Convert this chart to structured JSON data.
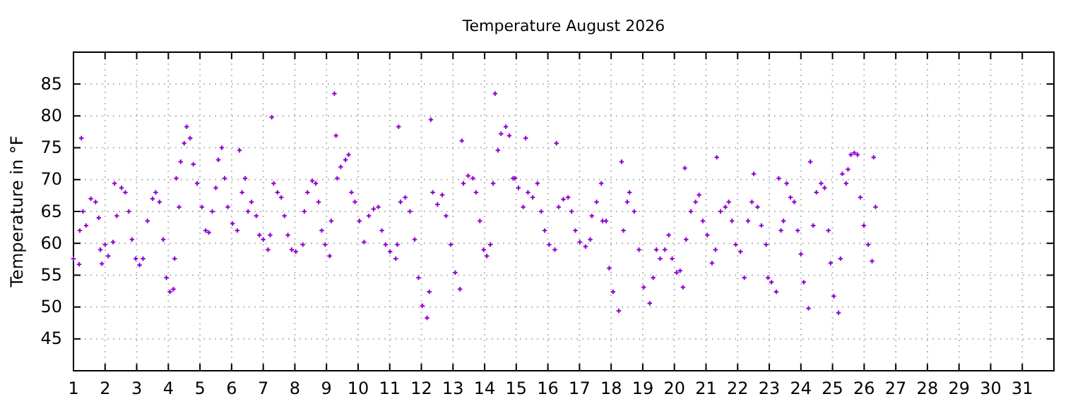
{
  "chart_data": {
    "type": "scatter",
    "title": "Temperature August 2026",
    "ylabel": "Temperature in °F",
    "marker": "cross",
    "grid": true,
    "xlim": [
      1,
      32
    ],
    "xticks": [
      1,
      2,
      3,
      4,
      5,
      6,
      7,
      8,
      9,
      10,
      11,
      12,
      13,
      14,
      15,
      16,
      17,
      18,
      19,
      20,
      21,
      22,
      23,
      24,
      25,
      26,
      27,
      28,
      29,
      30,
      31
    ],
    "ylim": [
      40,
      90
    ],
    "yticks": [
      {
        "value": 40,
        "label": null
      },
      45,
      50,
      55,
      60,
      65,
      70,
      75,
      80,
      85,
      {
        "value": 90,
        "label": null
      }
    ],
    "series": [
      {
        "color": "#9400d3",
        "x": [
          1.0,
          1.18,
          1.2,
          1.25,
          1.3,
          1.4,
          1.55,
          1.7,
          1.8,
          1.85,
          1.9,
          2.0,
          2.1,
          2.25,
          2.3,
          2.37,
          2.52,
          2.64,
          2.75,
          2.85,
          2.97,
          3.09,
          3.2,
          3.34,
          3.5,
          3.6,
          3.72,
          3.84,
          3.94,
          4.05,
          4.16,
          4.2,
          4.25,
          4.34,
          4.39,
          4.5,
          4.58,
          4.69,
          4.79,
          4.91,
          5.06,
          5.18,
          5.28,
          5.39,
          5.5,
          5.58,
          5.69,
          5.78,
          5.88,
          6.03,
          6.18,
          6.25,
          6.33,
          6.43,
          6.52,
          6.63,
          6.78,
          6.88,
          7.0,
          7.15,
          7.22,
          7.27,
          7.33,
          7.45,
          7.57,
          7.67,
          7.78,
          7.9,
          8.03,
          8.25,
          8.3,
          8.4,
          8.55,
          8.66,
          8.75,
          8.85,
          8.96,
          9.1,
          9.15,
          9.25,
          9.3,
          9.34,
          9.45,
          9.6,
          9.7,
          9.79,
          9.9,
          10.04,
          10.19,
          10.34,
          10.49,
          10.64,
          10.75,
          10.87,
          11.01,
          11.19,
          11.24,
          11.28,
          11.34,
          11.49,
          11.64,
          11.79,
          11.91,
          12.03,
          12.18,
          12.25,
          12.3,
          12.36,
          12.51,
          12.66,
          12.78,
          12.93,
          13.07,
          13.22,
          13.28,
          13.33,
          13.48,
          13.63,
          13.73,
          13.85,
          13.97,
          14.07,
          14.18,
          14.27,
          14.33,
          14.42,
          14.52,
          14.67,
          14.78,
          14.9,
          14.96,
          15.07,
          15.22,
          15.3,
          15.37,
          15.52,
          15.67,
          15.79,
          15.9,
          16.04,
          16.22,
          16.27,
          16.34,
          16.49,
          16.64,
          16.75,
          16.87,
          17.01,
          17.19,
          17.34,
          17.39,
          17.54,
          17.69,
          17.73,
          17.84,
          17.94,
          18.06,
          18.24,
          18.33,
          18.39,
          18.51,
          18.58,
          18.73,
          18.88,
          19.03,
          19.22,
          19.33,
          19.43,
          19.55,
          19.7,
          19.82,
          19.93,
          20.07,
          20.18,
          20.27,
          20.33,
          20.37,
          20.52,
          20.67,
          20.78,
          20.9,
          21.04,
          21.19,
          21.3,
          21.34,
          21.46,
          21.61,
          21.72,
          21.82,
          21.94,
          22.09,
          22.21,
          22.33,
          22.45,
          22.51,
          22.63,
          22.75,
          22.9,
          22.96,
          23.07,
          23.22,
          23.3,
          23.37,
          23.45,
          23.55,
          23.67,
          23.79,
          23.9,
          24.0,
          24.09,
          24.24,
          24.3,
          24.39,
          24.49,
          24.64,
          24.75,
          24.87,
          24.94,
          25.04,
          25.19,
          25.25,
          25.31,
          25.43,
          25.49,
          25.58,
          25.69,
          25.79,
          25.88,
          25.99,
          26.13,
          26.25,
          26.3,
          26.36
        ],
        "values": [
          57.6,
          56.7,
          62,
          76.5,
          65,
          62.8,
          67,
          66.5,
          64,
          59,
          56.8,
          59.8,
          58,
          60.2,
          69.4,
          64.3,
          68.7,
          68,
          65,
          60.6,
          57.6,
          56.6,
          57.6,
          63.5,
          67,
          68,
          66.5,
          60.6,
          54.6,
          52.4,
          52.8,
          57.6,
          70.2,
          65.7,
          72.8,
          75.7,
          78.3,
          76.5,
          72.4,
          69.4,
          65.7,
          62,
          61.7,
          65,
          68.7,
          73.1,
          75,
          70.2,
          65.7,
          63.1,
          62,
          74.6,
          68,
          70.2,
          65,
          66.5,
          64.3,
          61.3,
          60.6,
          59,
          61.3,
          79.8,
          69.4,
          68,
          67.2,
          64.3,
          61.3,
          59,
          58.7,
          59.8,
          65,
          68,
          69.8,
          69.4,
          66.5,
          62,
          59.8,
          58,
          63.5,
          83.5,
          76.9,
          70.2,
          72,
          73.1,
          73.9,
          68,
          66.5,
          63.5,
          60.2,
          64.3,
          65.4,
          65.7,
          62,
          59.8,
          58.7,
          57.6,
          59.8,
          78.3,
          66.5,
          67.2,
          65,
          60.6,
          54.6,
          50.2,
          48.3,
          52.4,
          79.4,
          68,
          66.1,
          67.6,
          64.3,
          59.8,
          55.4,
          52.8,
          76.1,
          69.4,
          70.6,
          70.2,
          68,
          63.5,
          59,
          58,
          59.8,
          69.4,
          83.5,
          74.6,
          77.2,
          78.3,
          76.9,
          70.2,
          70.2,
          68.7,
          65.7,
          76.5,
          68,
          67.2,
          69.4,
          65,
          62,
          59.8,
          59,
          75.7,
          65.7,
          66.9,
          67.2,
          65,
          62,
          60.2,
          59.5,
          60.6,
          64.3,
          66.5,
          69.4,
          63.5,
          63.5,
          56.1,
          52.4,
          49.4,
          72.8,
          62,
          66.5,
          68,
          65,
          59,
          53.1,
          50.6,
          54.6,
          59,
          57.6,
          59,
          61.3,
          57.6,
          55.4,
          55.7,
          53.1,
          71.8,
          60.6,
          65,
          66.5,
          67.6,
          63.5,
          61.3,
          56.9,
          59,
          73.5,
          65,
          65.7,
          66.5,
          63.5,
          59.8,
          58.7,
          54.6,
          63.5,
          66.5,
          70.9,
          65.7,
          62.8,
          59.8,
          54.6,
          53.9,
          52.4,
          70.2,
          62,
          63.5,
          69.4,
          67.2,
          66.5,
          62,
          58.3,
          53.9,
          49.8,
          72.8,
          62.8,
          68,
          69.4,
          68.7,
          62,
          56.9,
          51.7,
          49.1,
          57.6,
          70.9,
          69.4,
          71.6,
          73.9,
          74.2,
          73.9,
          67.2,
          62.8,
          59.8,
          57.2,
          73.5,
          65.7
        ]
      }
    ]
  }
}
